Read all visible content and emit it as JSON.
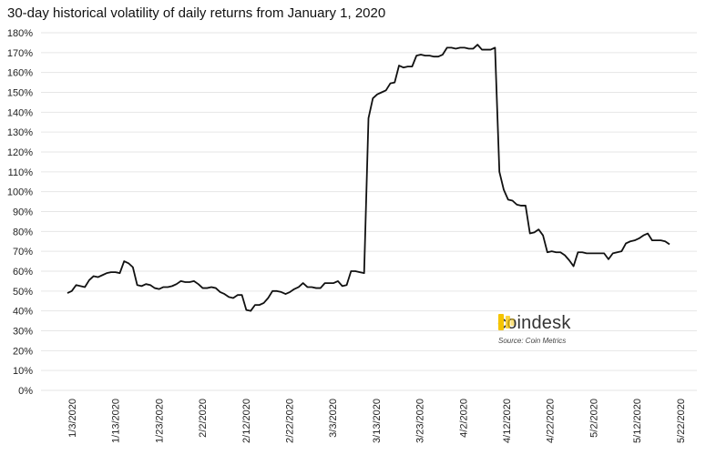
{
  "chart_data": {
    "type": "line",
    "title": "30-day historical volatility of daily returns from January 1, 2020",
    "xlabel": "",
    "ylabel": "",
    "ylim": [
      0,
      180
    ],
    "y_ticks": [
      "0%",
      "10%",
      "20%",
      "30%",
      "40%",
      "50%",
      "60%",
      "70%",
      "80%",
      "90%",
      "100%",
      "110%",
      "120%",
      "130%",
      "140%",
      "150%",
      "160%",
      "170%",
      "180%"
    ],
    "x_ticks": [
      "1/3/2020",
      "1/13/2020",
      "1/23/2020",
      "2/2/2020",
      "2/12/2020",
      "2/22/2020",
      "3/3/2020",
      "3/13/2020",
      "3/23/2020",
      "4/2/2020",
      "4/12/2020",
      "4/22/2020",
      "5/2/2020",
      "5/12/2020",
      "5/22/2020"
    ],
    "grid": true,
    "line_color": "#111111",
    "grid_color": "#e6e6e6",
    "series": [
      {
        "name": "",
        "values": [
          49,
          50,
          53,
          52.5,
          52,
          55.5,
          57.5,
          57,
          58,
          59,
          59.5,
          59.5,
          59,
          65,
          64,
          62,
          53,
          52.5,
          53.5,
          53,
          51.5,
          51,
          52,
          52,
          52.5,
          53.5,
          55,
          54.5,
          54.5,
          55,
          53.5,
          51.5,
          51.5,
          52,
          51.5,
          49.5,
          48.5,
          47,
          46.5,
          48,
          48,
          40.5,
          40,
          43,
          43,
          44,
          46.5,
          50,
          50,
          49.5,
          48.5,
          49.5,
          51,
          52,
          54,
          52,
          52,
          51.5,
          51.5,
          54,
          54,
          54,
          55,
          52.5,
          53,
          60,
          60,
          59.5,
          59,
          137,
          147,
          149,
          150,
          151,
          154.5,
          155,
          163.5,
          162.5,
          163,
          163,
          168.5,
          169,
          168.5,
          168.5,
          168,
          168,
          169,
          172.5,
          172.5,
          172,
          172.5,
          172.5,
          172,
          172,
          174,
          171.5,
          171.5,
          171.5,
          172.5,
          110,
          101,
          96,
          95.5,
          93.5,
          93,
          93,
          79,
          79.5,
          81,
          78,
          69.5,
          70,
          69.5,
          69.5,
          68,
          65.5,
          62.5,
          69.5,
          69.5,
          69,
          69,
          69,
          69,
          69,
          66,
          69,
          69.5,
          70,
          74,
          75,
          75.5,
          76.5,
          78,
          79,
          75.5,
          75.5,
          75.5,
          75,
          73.5
        ]
      }
    ]
  },
  "brand": {
    "name": "coindesk",
    "source": "Source: Coin Metrics",
    "logo_color": "#f5c400"
  }
}
